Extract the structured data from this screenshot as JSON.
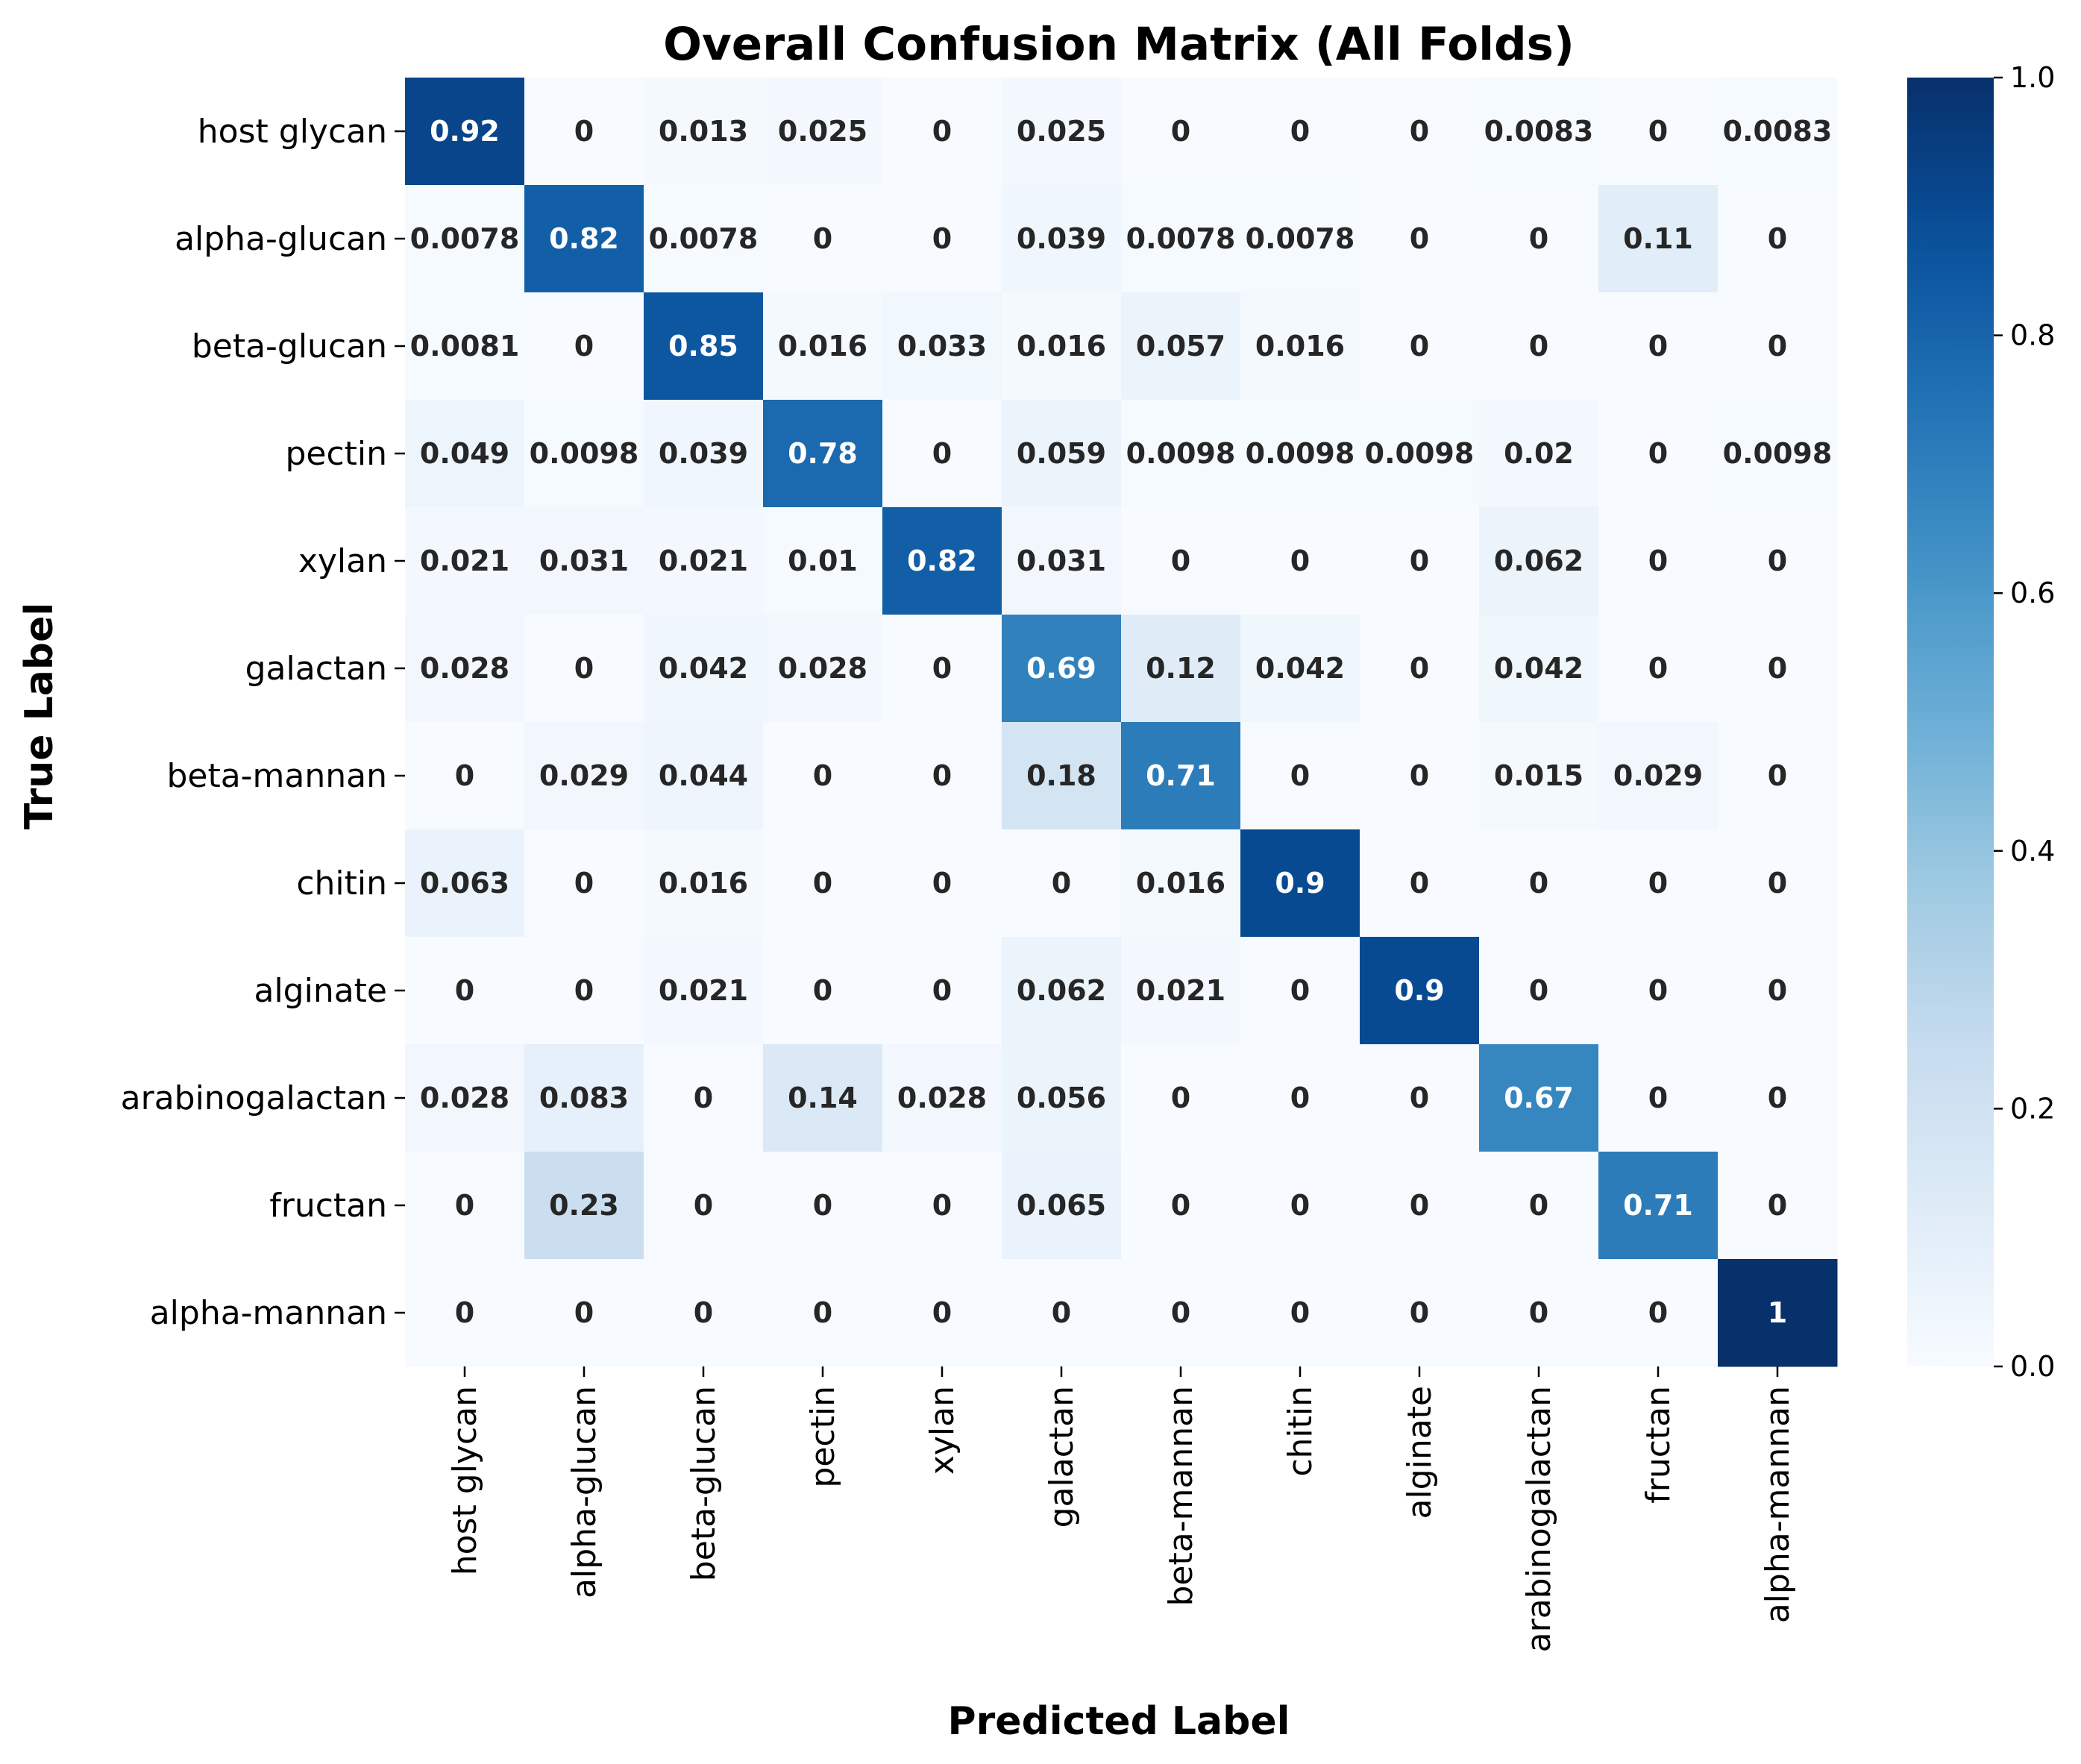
{
  "chart_data": {
    "type": "heatmap",
    "title": "Overall Confusion Matrix (All Folds)",
    "xlabel": "Predicted Label",
    "ylabel": "True Label",
    "row_labels": [
      "host glycan",
      "alpha-glucan",
      "beta-glucan",
      "pectin",
      "xylan",
      "galactan",
      "beta-mannan",
      "chitin",
      "alginate",
      "arabinogalactan",
      "fructan",
      "alpha-mannan"
    ],
    "col_labels": [
      "host glycan",
      "alpha-glucan",
      "beta-glucan",
      "pectin",
      "xylan",
      "galactan",
      "beta-mannan",
      "chitin",
      "alginate",
      "arabinogalactan",
      "fructan",
      "alpha-mannan"
    ],
    "values": [
      [
        0.92,
        0,
        0.013,
        0.025,
        0,
        0.025,
        0,
        0,
        0,
        0.0083,
        0,
        0.0083
      ],
      [
        0.0078,
        0.82,
        0.0078,
        0,
        0,
        0.039,
        0.0078,
        0.0078,
        0,
        0,
        0.11,
        0
      ],
      [
        0.0081,
        0,
        0.85,
        0.016,
        0.033,
        0.016,
        0.057,
        0.016,
        0,
        0,
        0,
        0
      ],
      [
        0.049,
        0.0098,
        0.039,
        0.78,
        0,
        0.059,
        0.0098,
        0.0098,
        0.0098,
        0.02,
        0,
        0.0098
      ],
      [
        0.021,
        0.031,
        0.021,
        0.01,
        0.82,
        0.031,
        0,
        0,
        0,
        0.062,
        0,
        0
      ],
      [
        0.028,
        0,
        0.042,
        0.028,
        0,
        0.69,
        0.12,
        0.042,
        0,
        0.042,
        0,
        0
      ],
      [
        0,
        0.029,
        0.044,
        0,
        0,
        0.18,
        0.71,
        0,
        0,
        0.015,
        0.029,
        0
      ],
      [
        0.063,
        0,
        0.016,
        0,
        0,
        0,
        0.016,
        0.9,
        0,
        0,
        0,
        0
      ],
      [
        0,
        0,
        0.021,
        0,
        0,
        0.062,
        0.021,
        0,
        0.9,
        0,
        0,
        0
      ],
      [
        0.028,
        0.083,
        0,
        0.14,
        0.028,
        0.056,
        0,
        0,
        0,
        0.67,
        0,
        0
      ],
      [
        0,
        0.23,
        0,
        0,
        0,
        0.065,
        0,
        0,
        0,
        0,
        0.71,
        0
      ],
      [
        0,
        0,
        0,
        0,
        0,
        0,
        0,
        0,
        0,
        0,
        0,
        1
      ]
    ],
    "cell_text": [
      [
        "0.92",
        "0",
        "0.013",
        "0.025",
        "0",
        "0.025",
        "0",
        "0",
        "0",
        "0.0083",
        "0",
        "0.0083"
      ],
      [
        "0.0078",
        "0.82",
        "0.0078",
        "0",
        "0",
        "0.039",
        "0.0078",
        "0.0078",
        "0",
        "0",
        "0.11",
        "0"
      ],
      [
        "0.0081",
        "0",
        "0.85",
        "0.016",
        "0.033",
        "0.016",
        "0.057",
        "0.016",
        "0",
        "0",
        "0",
        "0"
      ],
      [
        "0.049",
        "0.0098",
        "0.039",
        "0.78",
        "0",
        "0.059",
        "0.0098",
        "0.0098",
        "0.0098",
        "0.02",
        "0",
        "0.0098"
      ],
      [
        "0.021",
        "0.031",
        "0.021",
        "0.01",
        "0.82",
        "0.031",
        "0",
        "0",
        "0",
        "0.062",
        "0",
        "0"
      ],
      [
        "0.028",
        "0",
        "0.042",
        "0.028",
        "0",
        "0.69",
        "0.12",
        "0.042",
        "0",
        "0.042",
        "0",
        "0"
      ],
      [
        "0",
        "0.029",
        "0.044",
        "0",
        "0",
        "0.18",
        "0.71",
        "0",
        "0",
        "0.015",
        "0.029",
        "0"
      ],
      [
        "0.063",
        "0",
        "0.016",
        "0",
        "0",
        "0",
        "0.016",
        "0.9",
        "0",
        "0",
        "0",
        "0"
      ],
      [
        "0",
        "0",
        "0.021",
        "0",
        "0",
        "0.062",
        "0.021",
        "0",
        "0.9",
        "0",
        "0",
        "0"
      ],
      [
        "0.028",
        "0.083",
        "0",
        "0.14",
        "0.028",
        "0.056",
        "0",
        "0",
        "0",
        "0.67",
        "0",
        "0"
      ],
      [
        "0",
        "0.23",
        "0",
        "0",
        "0",
        "0.065",
        "0",
        "0",
        "0",
        "0",
        "0.71",
        "0"
      ],
      [
        "0",
        "0",
        "0",
        "0",
        "0",
        "0",
        "0",
        "0",
        "0",
        "0",
        "0",
        "1"
      ]
    ],
    "colorbar": {
      "range": [
        0,
        1
      ],
      "ticks": [
        "0.0",
        "0.2",
        "0.4",
        "0.6",
        "0.8",
        "1.0"
      ],
      "colormap": "Blues"
    },
    "grid": false
  }
}
